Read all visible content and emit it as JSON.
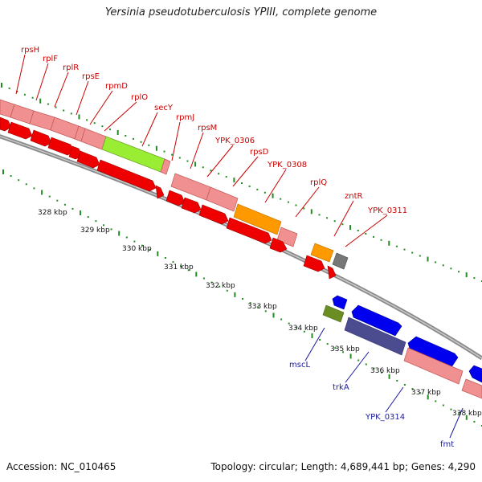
{
  "title": "Yersinia pseudotuberculosis YPIII, complete genome",
  "footer": {
    "accession": "Accession: NC_010465",
    "summary": "Topology: circular; Length: 4,689,441 bp; Genes: 4,290"
  },
  "kbp_labels": [
    "328 kbp",
    "329 kbp",
    "330 kbp",
    "331 kbp",
    "332 kbp",
    "333 kbp",
    "334 kbp",
    "335 kbp",
    "336 kbp",
    "337 kbp",
    "338 kbp"
  ],
  "genes_forward": [
    "rpsH",
    "rplF",
    "rplR",
    "rpsE",
    "rpmD",
    "rplO",
    "secY",
    "rpmJ",
    "rpsM",
    "YPK_0306",
    "rpsD",
    "YPK_0308",
    "rplQ",
    "zntR",
    "YPK_0311"
  ],
  "genes_reverse": [
    "mscL",
    "trkA",
    "YPK_0314",
    "fmt"
  ],
  "colors": {
    "forward_label": "#cc0000",
    "reverse_label": "#1a1aa0",
    "gene_pink": "#f09090",
    "cds_red": "#ee0000",
    "secY_green": "#99ee33",
    "orange": "#ff9900",
    "gray": "#777777",
    "olive": "#6b8e23",
    "blue": "#0000ee",
    "slate": "#4b4b8f",
    "tick_green": "#228b22"
  }
}
